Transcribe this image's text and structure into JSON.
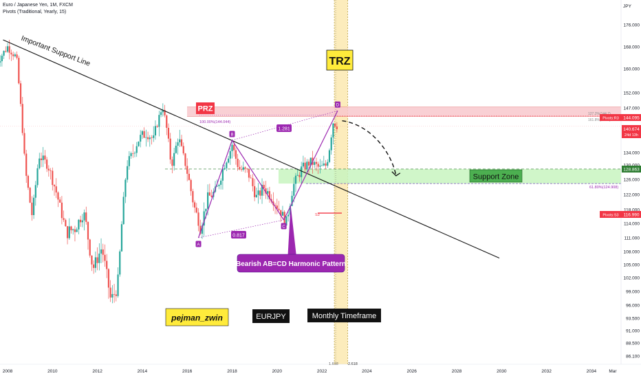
{
  "header": {
    "symbol": "Euro / Japanese Yen, 1M, FXCM",
    "indicator": "Pivots (Traditional, Yearly, 15)"
  },
  "chart_data": {
    "type": "candlestick",
    "currency": "JPY",
    "x_ticks": [
      "2008",
      "2010",
      "2012",
      "2014",
      "2016",
      "2018",
      "2020",
      "2022",
      "2024",
      "2026",
      "2028",
      "2030",
      "2032",
      "2034",
      "Mar"
    ],
    "y_ticks": [
      176.0,
      168.0,
      160.0,
      152.0,
      147.0,
      140.0,
      134.0,
      130.0,
      126.0,
      122.0,
      118.0,
      114.0,
      111.0,
      108.0,
      105.0,
      102.0,
      99.0,
      96.0,
      93.5,
      91.0,
      88.5,
      86.1
    ],
    "y_tick_labels": [
      "176.000",
      "168.000",
      "160.000",
      "152.000",
      "147.000",
      "140.000",
      "134.000",
      "130.000",
      "126.000",
      "122.000",
      "118.000",
      "114.000",
      "111.000",
      "108.000",
      "105.000",
      "102.000",
      "99.000",
      "96.000",
      "93.500",
      "91.000",
      "88.500",
      "86.100"
    ],
    "price_path": [
      [
        2007.5,
        162
      ],
      [
        2008.0,
        168
      ],
      [
        2008.4,
        164
      ],
      [
        2008.8,
        128
      ],
      [
        2009.1,
        116
      ],
      [
        2009.4,
        133
      ],
      [
        2009.8,
        130
      ],
      [
        2010.2,
        122
      ],
      [
        2010.6,
        112
      ],
      [
        2011.0,
        113
      ],
      [
        2011.4,
        117
      ],
      [
        2011.8,
        104
      ],
      [
        2012.2,
        109
      ],
      [
        2012.6,
        97
      ],
      [
        2012.9,
        100
      ],
      [
        2013.3,
        130
      ],
      [
        2013.8,
        137
      ],
      [
        2014.2,
        139
      ],
      [
        2014.5,
        137
      ],
      [
        2014.9,
        148
      ],
      [
        2015.3,
        130
      ],
      [
        2015.6,
        138
      ],
      [
        2015.9,
        131
      ],
      [
        2016.3,
        119
      ],
      [
        2016.6,
        113
      ],
      [
        2016.9,
        121
      ],
      [
        2017.3,
        123
      ],
      [
        2017.7,
        131
      ],
      [
        2018.0,
        136
      ],
      [
        2018.3,
        129
      ],
      [
        2018.7,
        128
      ],
      [
        2019.1,
        121
      ],
      [
        2019.4,
        124
      ],
      [
        2019.8,
        121
      ],
      [
        2020.2,
        117
      ],
      [
        2020.4,
        114
      ],
      [
        2020.7,
        124
      ],
      [
        2021.1,
        129
      ],
      [
        2021.5,
        131
      ],
      [
        2021.9,
        129
      ],
      [
        2022.2,
        130
      ],
      [
        2022.5,
        142
      ],
      [
        2022.7,
        140.674
      ]
    ],
    "levels": {
      "pivot_r3": "144.095",
      "last_price": "140.674",
      "countdown": "24d 13h",
      "support_price": "128.863",
      "pivot_s3": "116.990",
      "pivot_r3_label": "Pivots:R3",
      "pivot_s3_label": "Pivots:S3",
      "s3_short": "S3",
      "retr_top": "100.00%(144.044)",
      "retr_bottom": "61.80%(124.908)",
      "retr_top_right_a": "127.2%(144.7)",
      "retr_top_right_b": "161.8%(143.1)",
      "time_fib_a": "1.618",
      "time_fib_b": "2.618"
    },
    "pattern_points": {
      "A": [
        2016.5,
        111.0,
        "A"
      ],
      "B": [
        2018.0,
        137.0,
        "B"
      ],
      "C": [
        2020.3,
        115.0,
        "C"
      ],
      "D": [
        2022.7,
        146.0,
        "D"
      ]
    },
    "ratios": {
      "ab": "0.817",
      "bd": "1.281"
    },
    "trendline": {
      "start": [
        2007.8,
        170.5
      ],
      "end": [
        2029.9,
        106.5
      ]
    },
    "prz": {
      "top": 147.3,
      "bottom": 144.0
    },
    "support_zone": {
      "top": 128.86,
      "bottom": 124.9
    },
    "trz": {
      "x_start": 2022.55,
      "x_end": 2023.15
    },
    "projection": [
      [
        2022.9,
        142.5
      ],
      [
        2024.2,
        141.0
      ],
      [
        2025.1,
        134.0
      ],
      [
        2025.3,
        127.0
      ],
      [
        2025.0,
        125.5
      ]
    ],
    "annotations": {
      "trend": "Important Support Line",
      "prz": "PRZ",
      "trz": "TRZ",
      "support": "Support Zone",
      "pattern": "Bearish AB=CD Harmonic Pattern",
      "author": "pejman_zwin",
      "symbol": "EURJPY",
      "timeframe": "Monthly Timeframe"
    }
  },
  "colors": {
    "up": "#26a69a",
    "down": "#ef5350",
    "pattern": "#9c27b0",
    "prz_fill": "#f8c8cc",
    "support_fill": "#c8f5c0",
    "trz_fill": "#fbe9b0",
    "price_tag": "#f23645",
    "support_tag": "#2e7d32"
  }
}
